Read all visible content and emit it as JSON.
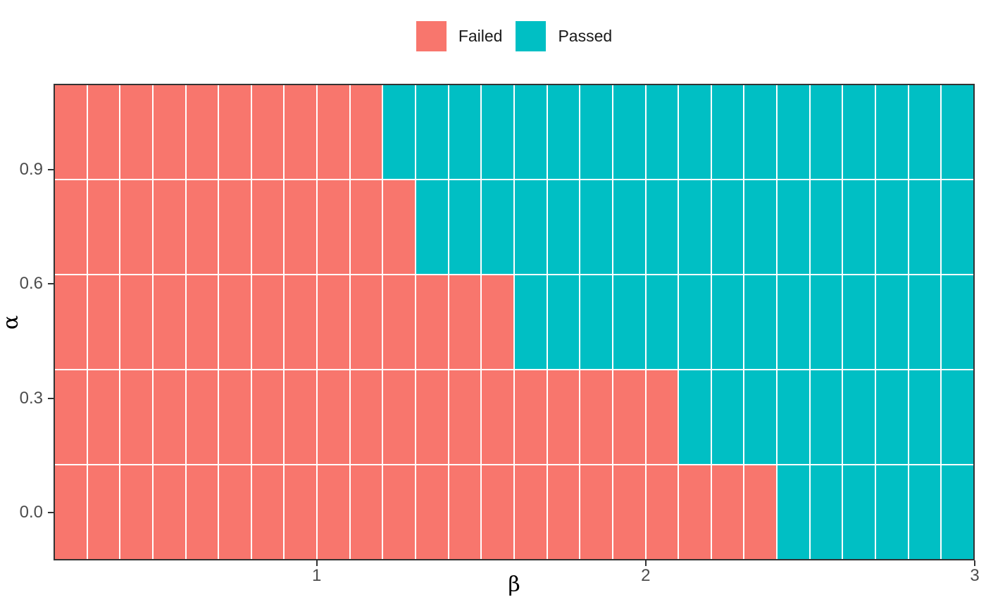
{
  "chart_data": {
    "type": "heatmap",
    "title": "",
    "xlabel": "β",
    "ylabel": "α",
    "x_domain": [
      0.2,
      3.0
    ],
    "y_domain": [
      -0.125,
      1.125
    ],
    "x_ticks": [
      {
        "value": 1,
        "label": "1"
      },
      {
        "value": 2,
        "label": "2"
      },
      {
        "value": 3,
        "label": "3"
      }
    ],
    "y_ticks": [
      {
        "value": 0.9,
        "label": "0.9"
      },
      {
        "value": 0.6,
        "label": "0.6"
      },
      {
        "value": 0.3,
        "label": "0.3"
      },
      {
        "value": 0.0,
        "label": "0.0"
      }
    ],
    "tile_width": 0.1,
    "tile_height": 0.25,
    "beta_values": [
      0.25,
      0.35,
      0.45,
      0.55,
      0.65,
      0.75,
      0.85,
      0.95,
      1.05,
      1.15,
      1.25,
      1.35,
      1.45,
      1.55,
      1.65,
      1.75,
      1.85,
      1.95,
      2.05,
      2.15,
      2.25,
      2.35,
      2.45,
      2.55,
      2.65,
      2.75,
      2.85,
      2.95
    ],
    "alpha_values_top_to_bottom": [
      1.0,
      0.75,
      0.5,
      0.25,
      0.0
    ],
    "rows": [
      {
        "alpha": 1.0,
        "failed_count": 10,
        "passed_count": 18,
        "failed_beta_max": 1.15,
        "passed_beta_min": 1.25
      },
      {
        "alpha": 0.75,
        "failed_count": 11,
        "passed_count": 17,
        "failed_beta_max": 1.25,
        "passed_beta_min": 1.35
      },
      {
        "alpha": 0.5,
        "failed_count": 14,
        "passed_count": 14,
        "failed_beta_max": 1.55,
        "passed_beta_min": 1.65
      },
      {
        "alpha": 0.25,
        "failed_count": 19,
        "passed_count": 9,
        "failed_beta_max": 2.05,
        "passed_beta_min": 2.15
      },
      {
        "alpha": 0.0,
        "failed_count": 22,
        "passed_count": 6,
        "failed_beta_max": 2.35,
        "passed_beta_min": 2.45
      }
    ],
    "legend": {
      "position": "top-center",
      "entries": [
        {
          "label": "Failed",
          "status": "Failed",
          "color": "#F8766D"
        },
        {
          "label": "Passed",
          "status": "Passed",
          "color": "#00BFC4"
        }
      ]
    },
    "colors": {
      "failed": "#F8766D",
      "passed": "#00BFC4",
      "gridline": "#FFFFFF",
      "panel_border": "#333333",
      "axis_text": "#4D4D4D",
      "axis_title": "#000000",
      "legend_text": "#1A1A1A"
    },
    "grid": "white lines between tiles",
    "legend_position": "top"
  }
}
